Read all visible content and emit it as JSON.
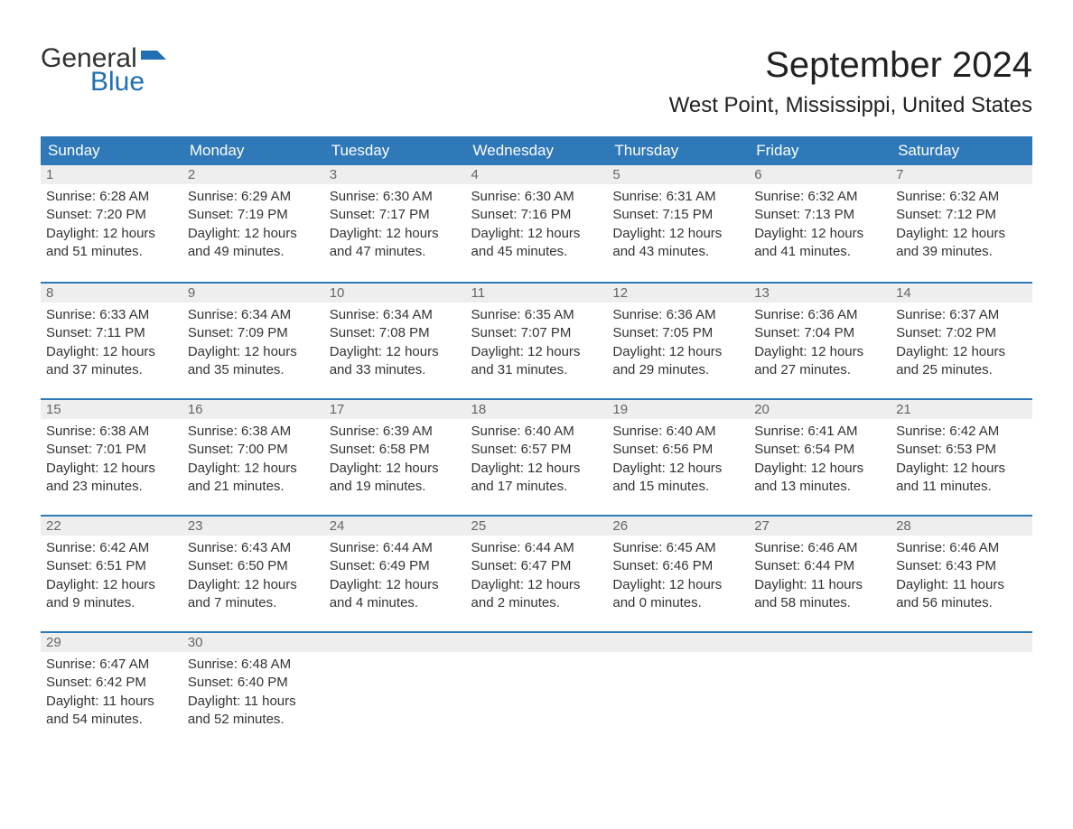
{
  "logo": {
    "line1": "General",
    "line2": "Blue",
    "brand_color": "#1f6fb2"
  },
  "title": "September 2024",
  "subtitle": "West Point, Mississippi, United States",
  "colors": {
    "header_bg": "#2f79b9",
    "header_text": "#ffffff",
    "daynum_bg": "#eeeeee",
    "daynum_text": "#666666",
    "row_border": "#2f79b9",
    "body_text": "#333333",
    "page_bg": "#ffffff"
  },
  "calendar": {
    "type": "table",
    "columns": [
      "Sunday",
      "Monday",
      "Tuesday",
      "Wednesday",
      "Thursday",
      "Friday",
      "Saturday"
    ],
    "start_day_index": 0,
    "days": [
      {
        "n": 1,
        "sunrise": "6:28 AM",
        "sunset": "7:20 PM",
        "dl_h": 12,
        "dl_m": 51
      },
      {
        "n": 2,
        "sunrise": "6:29 AM",
        "sunset": "7:19 PM",
        "dl_h": 12,
        "dl_m": 49
      },
      {
        "n": 3,
        "sunrise": "6:30 AM",
        "sunset": "7:17 PM",
        "dl_h": 12,
        "dl_m": 47
      },
      {
        "n": 4,
        "sunrise": "6:30 AM",
        "sunset": "7:16 PM",
        "dl_h": 12,
        "dl_m": 45
      },
      {
        "n": 5,
        "sunrise": "6:31 AM",
        "sunset": "7:15 PM",
        "dl_h": 12,
        "dl_m": 43
      },
      {
        "n": 6,
        "sunrise": "6:32 AM",
        "sunset": "7:13 PM",
        "dl_h": 12,
        "dl_m": 41
      },
      {
        "n": 7,
        "sunrise": "6:32 AM",
        "sunset": "7:12 PM",
        "dl_h": 12,
        "dl_m": 39
      },
      {
        "n": 8,
        "sunrise": "6:33 AM",
        "sunset": "7:11 PM",
        "dl_h": 12,
        "dl_m": 37
      },
      {
        "n": 9,
        "sunrise": "6:34 AM",
        "sunset": "7:09 PM",
        "dl_h": 12,
        "dl_m": 35
      },
      {
        "n": 10,
        "sunrise": "6:34 AM",
        "sunset": "7:08 PM",
        "dl_h": 12,
        "dl_m": 33
      },
      {
        "n": 11,
        "sunrise": "6:35 AM",
        "sunset": "7:07 PM",
        "dl_h": 12,
        "dl_m": 31
      },
      {
        "n": 12,
        "sunrise": "6:36 AM",
        "sunset": "7:05 PM",
        "dl_h": 12,
        "dl_m": 29
      },
      {
        "n": 13,
        "sunrise": "6:36 AM",
        "sunset": "7:04 PM",
        "dl_h": 12,
        "dl_m": 27
      },
      {
        "n": 14,
        "sunrise": "6:37 AM",
        "sunset": "7:02 PM",
        "dl_h": 12,
        "dl_m": 25
      },
      {
        "n": 15,
        "sunrise": "6:38 AM",
        "sunset": "7:01 PM",
        "dl_h": 12,
        "dl_m": 23
      },
      {
        "n": 16,
        "sunrise": "6:38 AM",
        "sunset": "7:00 PM",
        "dl_h": 12,
        "dl_m": 21
      },
      {
        "n": 17,
        "sunrise": "6:39 AM",
        "sunset": "6:58 PM",
        "dl_h": 12,
        "dl_m": 19
      },
      {
        "n": 18,
        "sunrise": "6:40 AM",
        "sunset": "6:57 PM",
        "dl_h": 12,
        "dl_m": 17
      },
      {
        "n": 19,
        "sunrise": "6:40 AM",
        "sunset": "6:56 PM",
        "dl_h": 12,
        "dl_m": 15
      },
      {
        "n": 20,
        "sunrise": "6:41 AM",
        "sunset": "6:54 PM",
        "dl_h": 12,
        "dl_m": 13
      },
      {
        "n": 21,
        "sunrise": "6:42 AM",
        "sunset": "6:53 PM",
        "dl_h": 12,
        "dl_m": 11
      },
      {
        "n": 22,
        "sunrise": "6:42 AM",
        "sunset": "6:51 PM",
        "dl_h": 12,
        "dl_m": 9
      },
      {
        "n": 23,
        "sunrise": "6:43 AM",
        "sunset": "6:50 PM",
        "dl_h": 12,
        "dl_m": 7
      },
      {
        "n": 24,
        "sunrise": "6:44 AM",
        "sunset": "6:49 PM",
        "dl_h": 12,
        "dl_m": 4
      },
      {
        "n": 25,
        "sunrise": "6:44 AM",
        "sunset": "6:47 PM",
        "dl_h": 12,
        "dl_m": 2
      },
      {
        "n": 26,
        "sunrise": "6:45 AM",
        "sunset": "6:46 PM",
        "dl_h": 12,
        "dl_m": 0
      },
      {
        "n": 27,
        "sunrise": "6:46 AM",
        "sunset": "6:44 PM",
        "dl_h": 11,
        "dl_m": 58
      },
      {
        "n": 28,
        "sunrise": "6:46 AM",
        "sunset": "6:43 PM",
        "dl_h": 11,
        "dl_m": 56
      },
      {
        "n": 29,
        "sunrise": "6:47 AM",
        "sunset": "6:42 PM",
        "dl_h": 11,
        "dl_m": 54
      },
      {
        "n": 30,
        "sunrise": "6:48 AM",
        "sunset": "6:40 PM",
        "dl_h": 11,
        "dl_m": 52
      }
    ],
    "labels": {
      "sunrise_prefix": "Sunrise: ",
      "sunset_prefix": "Sunset: ",
      "daylight_prefix": "Daylight: ",
      "hours_word": " hours",
      "and_word": "and ",
      "minutes_word": " minutes."
    }
  }
}
